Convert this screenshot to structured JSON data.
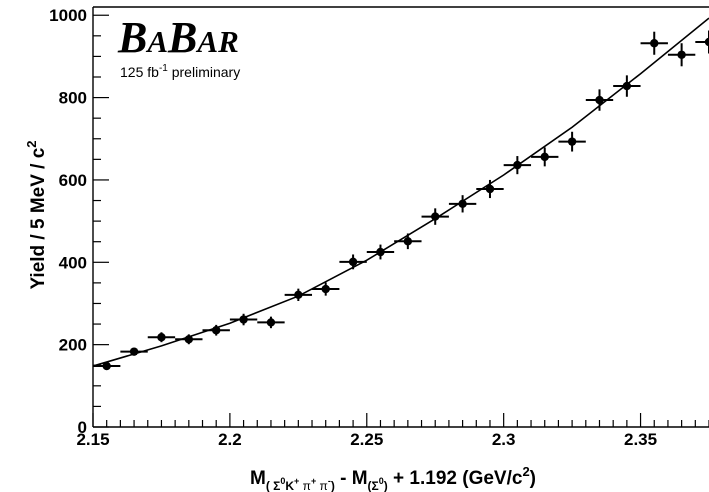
{
  "logo": {
    "b1": "B",
    "a": "A",
    "b2": "B",
    "ar": "AR"
  },
  "luminosity": {
    "value": "125 fb",
    "exponent": "-1",
    "suffix": " preliminary"
  },
  "chart_data": {
    "type": "scatter",
    "xlabel": {
      "main": "M",
      "sub1": "( Σ",
      "sub1_sup0": "0",
      "sub1_k": "K",
      "sub1_kplus": "+",
      "sub1_pi1": " π",
      "sub1_pi1_sup": "+",
      "sub1_pi2": " π",
      "sub1_pi2_sup": "-",
      "sub1_close": ")",
      "minus": " - M",
      "sub2": "(Σ",
      "sub2_sup": "0",
      "sub2_close": ")",
      "tail": " + 1.192 (GeV/c",
      "tail_sup": "2",
      "tail_close": ")"
    },
    "ylabel": {
      "main": "Yield / 5 MeV / c",
      "sup": "2"
    },
    "xlim": [
      2.15,
      2.375
    ],
    "ylim": [
      0,
      1020
    ],
    "x_ticks": [
      2.15,
      2.2,
      2.25,
      2.3,
      2.35
    ],
    "x_tick_labels": [
      "2.15",
      "2.2",
      "2.25",
      "2.3",
      "2.35"
    ],
    "y_ticks": [
      0,
      200,
      400,
      600,
      800,
      1000
    ],
    "y_tick_labels": [
      "0",
      "200",
      "400",
      "600",
      "800",
      "1000"
    ],
    "bin_half_width": 0.005,
    "points": [
      {
        "x": 2.155,
        "y": 148,
        "err": 6
      },
      {
        "x": 2.165,
        "y": 183,
        "err": 9
      },
      {
        "x": 2.175,
        "y": 218,
        "err": 12
      },
      {
        "x": 2.185,
        "y": 213,
        "err": 12
      },
      {
        "x": 2.195,
        "y": 235,
        "err": 13
      },
      {
        "x": 2.205,
        "y": 261,
        "err": 14
      },
      {
        "x": 2.215,
        "y": 254,
        "err": 14
      },
      {
        "x": 2.225,
        "y": 321,
        "err": 15
      },
      {
        "x": 2.235,
        "y": 335,
        "err": 16
      },
      {
        "x": 2.245,
        "y": 401,
        "err": 18
      },
      {
        "x": 2.255,
        "y": 425,
        "err": 18
      },
      {
        "x": 2.265,
        "y": 451,
        "err": 19
      },
      {
        "x": 2.275,
        "y": 511,
        "err": 20
      },
      {
        "x": 2.285,
        "y": 542,
        "err": 21
      },
      {
        "x": 2.295,
        "y": 578,
        "err": 22
      },
      {
        "x": 2.305,
        "y": 636,
        "err": 22
      },
      {
        "x": 2.315,
        "y": 656,
        "err": 23
      },
      {
        "x": 2.325,
        "y": 693,
        "err": 24
      },
      {
        "x": 2.335,
        "y": 794,
        "err": 26
      },
      {
        "x": 2.345,
        "y": 828,
        "err": 26
      },
      {
        "x": 2.355,
        "y": 932,
        "err": 28
      },
      {
        "x": 2.365,
        "y": 904,
        "err": 28
      },
      {
        "x": 2.375,
        "y": 935,
        "err": 28
      }
    ],
    "fit_curve": {
      "x": [
        2.15,
        2.175,
        2.2,
        2.225,
        2.25,
        2.275,
        2.3,
        2.325,
        2.35,
        2.375
      ],
      "y": [
        148,
        197,
        252,
        318,
        405,
        506,
        612,
        728,
        858,
        993
      ]
    }
  }
}
